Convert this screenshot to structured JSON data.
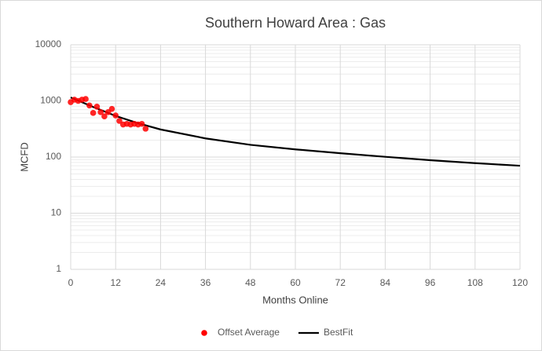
{
  "chart_data": {
    "type": "scatter-line",
    "title": "Southern Howard Area : Gas",
    "x_label": "Months Online",
    "y_label": "MCFD",
    "xlim": [
      0,
      120
    ],
    "xticks": [
      0,
      12,
      24,
      36,
      48,
      60,
      72,
      84,
      96,
      108,
      120
    ],
    "ylim": [
      1,
      10000
    ],
    "yticks": [
      1,
      10,
      100,
      1000,
      10000
    ],
    "y_scale": "log",
    "grid": true,
    "minor_grid": true,
    "legend": "bottom",
    "series": [
      {
        "name": "Offset Average",
        "type": "scatter",
        "color": "#ff0000",
        "x": [
          0,
          1,
          2,
          3,
          4,
          5,
          6,
          7,
          8,
          9,
          10,
          11,
          12,
          13,
          14,
          15,
          16,
          17,
          18,
          19,
          20
        ],
        "values": [
          950,
          1050,
          1000,
          1050,
          1080,
          830,
          610,
          790,
          630,
          530,
          630,
          720,
          550,
          440,
          380,
          390,
          380,
          390,
          380,
          390,
          320
        ]
      },
      {
        "name": "BestFit",
        "type": "line",
        "color": "#000000",
        "x": [
          0,
          3,
          6,
          9,
          12,
          18,
          24,
          36,
          48,
          60,
          72,
          84,
          96,
          108,
          120
        ],
        "values": [
          1150,
          950,
          780,
          650,
          540,
          400,
          310,
          215,
          165,
          137,
          117,
          101,
          88,
          78,
          70
        ]
      }
    ]
  }
}
